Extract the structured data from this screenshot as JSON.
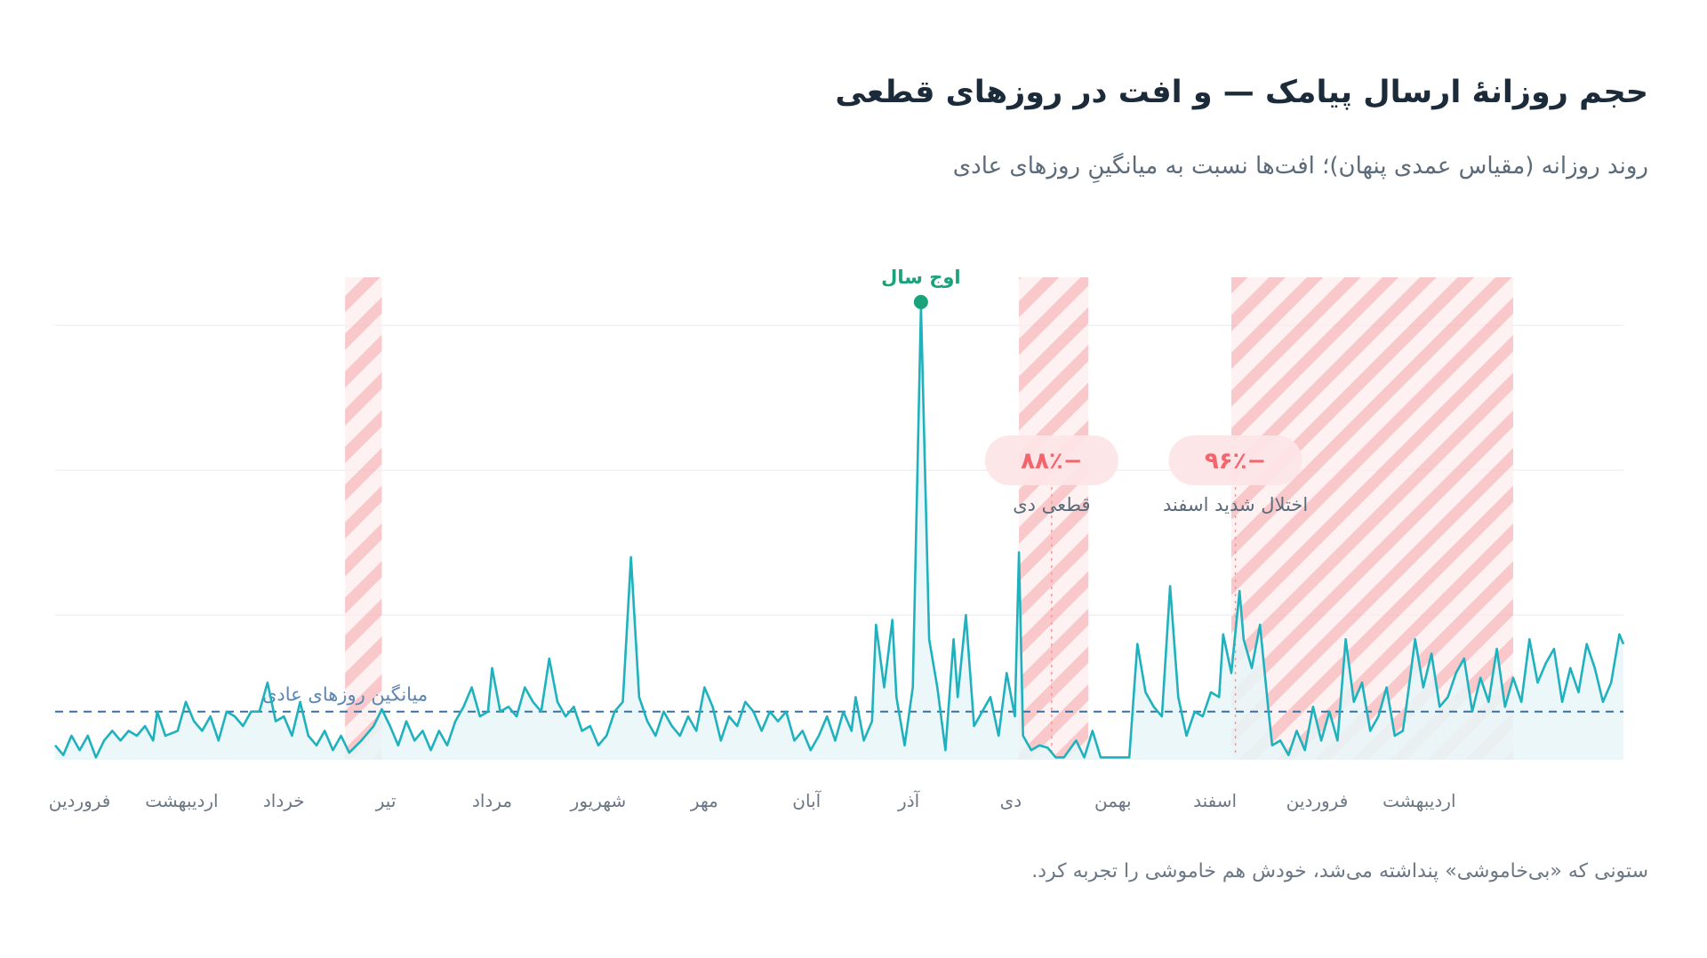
{
  "header": {
    "title": "حجم روزانهٔ ارسال پیامک — و افت در روزهای قطعی",
    "subtitle": "روند روزانه (مقیاس عمدی پنهان)؛ افت‌ها نسبت به میانگینِ روزهای عادی"
  },
  "footnote": "ستونی که «بی‌خاموشی» پنداشته می‌شد، خودش هم خاموشی را تجربه کرد.",
  "chart_data": {
    "type": "area",
    "x_unit": "day",
    "xlim": [
      0,
      384
    ],
    "ylim": [
      0,
      10
    ],
    "yaxis_hidden": true,
    "grid": true,
    "colors": {
      "line": "#1fb2be",
      "area": "#e7f6f8",
      "average": "#3f6f9f",
      "outage_band": "#f7b5b8",
      "badge": "#fde5e6",
      "badge_text": "#f4646c",
      "peak": "#1aa37a"
    },
    "months": [
      {
        "label": "فروردین",
        "day": 6
      },
      {
        "label": "اردیبهشت",
        "day": 31
      },
      {
        "label": "خرداد",
        "day": 56
      },
      {
        "label": "تیر",
        "day": 81
      },
      {
        "label": "مرداد",
        "day": 107
      },
      {
        "label": "شهریور",
        "day": 133
      },
      {
        "label": "مهر",
        "day": 159
      },
      {
        "label": "آبان",
        "day": 184
      },
      {
        "label": "آذر",
        "day": 209
      },
      {
        "label": "دی",
        "day": 234
      },
      {
        "label": "بهمن",
        "day": 259
      },
      {
        "label": "اسفند",
        "day": 284
      },
      {
        "label": "فروردین",
        "day": 309
      },
      {
        "label": "اردیبهشت",
        "day": 334
      }
    ],
    "average": {
      "value": 1.0,
      "label": "میانگین روزهای عادی"
    },
    "outages": [
      {
        "start": 71,
        "end": 80
      },
      {
        "start": 236,
        "end": 253
      },
      {
        "start": 288,
        "end": 357
      }
    ],
    "annotations": [
      {
        "day": 244,
        "badge": "−۸۸٪",
        "label": "قطعی دی"
      },
      {
        "day": 289,
        "badge": "−۹۶٪",
        "label": "اختلال شدید اسفند"
      }
    ],
    "peak": {
      "day": 212,
      "value": 9.45,
      "label": "اوج سال"
    },
    "keypoints": [
      [
        0,
        0.3
      ],
      [
        2,
        0.1
      ],
      [
        4,
        0.5
      ],
      [
        6,
        0.2
      ],
      [
        8,
        0.5
      ],
      [
        10,
        0.05
      ],
      [
        12,
        0.4
      ],
      [
        14,
        0.6
      ],
      [
        16,
        0.4
      ],
      [
        18,
        0.6
      ],
      [
        20,
        0.5
      ],
      [
        22,
        0.7
      ],
      [
        24,
        0.4
      ],
      [
        25,
        1.0
      ],
      [
        27,
        0.5
      ],
      [
        30,
        0.6
      ],
      [
        32,
        1.2
      ],
      [
        34,
        0.8
      ],
      [
        36,
        0.6
      ],
      [
        38,
        0.9
      ],
      [
        40,
        0.4
      ],
      [
        42,
        1.0
      ],
      [
        44,
        0.9
      ],
      [
        46,
        0.7
      ],
      [
        48,
        1.0
      ],
      [
        50,
        1.0
      ],
      [
        52,
        1.6
      ],
      [
        54,
        0.8
      ],
      [
        56,
        0.9
      ],
      [
        58,
        0.5
      ],
      [
        60,
        1.2
      ],
      [
        62,
        0.5
      ],
      [
        64,
        0.3
      ],
      [
        66,
        0.6
      ],
      [
        68,
        0.2
      ],
      [
        70,
        0.5
      ],
      [
        72,
        0.15
      ],
      [
        75,
        0.4
      ],
      [
        78,
        0.7
      ],
      [
        80,
        1.05
      ],
      [
        82,
        0.7
      ],
      [
        84,
        0.3
      ],
      [
        86,
        0.8
      ],
      [
        88,
        0.4
      ],
      [
        90,
        0.6
      ],
      [
        92,
        0.2
      ],
      [
        94,
        0.6
      ],
      [
        96,
        0.3
      ],
      [
        98,
        0.8
      ],
      [
        100,
        1.1
      ],
      [
        102,
        1.5
      ],
      [
        104,
        0.9
      ],
      [
        106,
        1.0
      ],
      [
        107,
        1.9
      ],
      [
        109,
        1.0
      ],
      [
        111,
        1.1
      ],
      [
        113,
        0.9
      ],
      [
        115,
        1.5
      ],
      [
        117,
        1.2
      ],
      [
        119,
        1.0
      ],
      [
        121,
        2.1
      ],
      [
        123,
        1.2
      ],
      [
        125,
        0.9
      ],
      [
        127,
        1.1
      ],
      [
        129,
        0.6
      ],
      [
        131,
        0.7
      ],
      [
        133,
        0.3
      ],
      [
        135,
        0.5
      ],
      [
        137,
        1.0
      ],
      [
        139,
        1.2
      ],
      [
        141,
        4.2
      ],
      [
        143,
        1.3
      ],
      [
        145,
        0.8
      ],
      [
        147,
        0.5
      ],
      [
        149,
        1.0
      ],
      [
        151,
        0.7
      ],
      [
        153,
        0.5
      ],
      [
        155,
        0.9
      ],
      [
        157,
        0.6
      ],
      [
        159,
        1.5
      ],
      [
        161,
        1.1
      ],
      [
        163,
        0.4
      ],
      [
        165,
        0.9
      ],
      [
        167,
        0.7
      ],
      [
        169,
        1.2
      ],
      [
        171,
        1.0
      ],
      [
        173,
        0.6
      ],
      [
        175,
        1.0
      ],
      [
        177,
        0.8
      ],
      [
        179,
        1.0
      ],
      [
        181,
        0.4
      ],
      [
        183,
        0.6
      ],
      [
        185,
        0.2
      ],
      [
        187,
        0.5
      ],
      [
        189,
        0.9
      ],
      [
        191,
        0.4
      ],
      [
        193,
        1.0
      ],
      [
        195,
        0.6
      ],
      [
        196,
        1.3
      ],
      [
        198,
        0.4
      ],
      [
        200,
        0.8
      ],
      [
        201,
        2.8
      ],
      [
        203,
        1.5
      ],
      [
        205,
        2.9
      ],
      [
        206,
        1.3
      ],
      [
        208,
        0.3
      ],
      [
        210,
        1.5
      ],
      [
        212,
        9.4
      ],
      [
        214,
        2.5
      ],
      [
        216,
        1.5
      ],
      [
        218,
        0.2
      ],
      [
        220,
        2.5
      ],
      [
        221,
        1.3
      ],
      [
        223,
        3.0
      ],
      [
        225,
        0.7
      ],
      [
        227,
        1.0
      ],
      [
        229,
        1.3
      ],
      [
        231,
        0.5
      ],
      [
        233,
        1.8
      ],
      [
        235,
        0.9
      ],
      [
        236,
        4.3
      ],
      [
        237,
        0.5
      ],
      [
        239,
        0.2
      ],
      [
        241,
        0.3
      ],
      [
        243,
        0.25
      ],
      [
        245,
        0.05
      ],
      [
        247,
        0.05
      ],
      [
        250,
        0.4
      ],
      [
        252,
        0.05
      ],
      [
        254,
        0.6
      ],
      [
        256,
        0.05
      ],
      [
        259,
        0.05
      ],
      [
        263,
        0.05
      ],
      [
        265,
        2.4
      ],
      [
        267,
        1.4
      ],
      [
        269,
        1.1
      ],
      [
        271,
        0.9
      ],
      [
        273,
        3.6
      ],
      [
        275,
        1.3
      ],
      [
        277,
        0.5
      ],
      [
        279,
        1.0
      ],
      [
        281,
        0.9
      ],
      [
        283,
        1.4
      ],
      [
        285,
        1.3
      ],
      [
        286,
        2.6
      ],
      [
        288,
        1.8
      ],
      [
        290,
        3.5
      ],
      [
        291,
        2.5
      ],
      [
        293,
        1.9
      ],
      [
        295,
        2.8
      ],
      [
        297,
        1.1
      ],
      [
        298,
        0.3
      ],
      [
        300,
        0.4
      ],
      [
        302,
        0.1
      ],
      [
        304,
        0.6
      ],
      [
        306,
        0.2
      ],
      [
        308,
        1.1
      ],
      [
        310,
        0.4
      ],
      [
        312,
        1.0
      ],
      [
        314,
        0.4
      ],
      [
        316,
        2.5
      ],
      [
        318,
        1.2
      ],
      [
        320,
        1.6
      ],
      [
        322,
        0.6
      ],
      [
        324,
        0.9
      ],
      [
        326,
        1.5
      ],
      [
        328,
        0.5
      ],
      [
        330,
        0.6
      ],
      [
        331,
        1.2
      ],
      [
        333,
        2.5
      ],
      [
        335,
        1.5
      ],
      [
        337,
        2.2
      ],
      [
        339,
        1.1
      ],
      [
        341,
        1.3
      ],
      [
        343,
        1.8
      ],
      [
        345,
        2.1
      ],
      [
        347,
        1.0
      ],
      [
        349,
        1.7
      ],
      [
        351,
        1.2
      ],
      [
        353,
        2.3
      ],
      [
        355,
        1.1
      ],
      [
        357,
        1.7
      ],
      [
        359,
        1.2
      ],
      [
        361,
        2.5
      ],
      [
        363,
        1.6
      ],
      [
        365,
        2.0
      ],
      [
        367,
        2.3
      ],
      [
        369,
        1.2
      ],
      [
        371,
        1.9
      ],
      [
        373,
        1.4
      ],
      [
        375,
        2.4
      ],
      [
        377,
        1.9
      ],
      [
        379,
        1.2
      ],
      [
        381,
        1.6
      ],
      [
        383,
        2.6
      ],
      [
        384,
        2.4
      ]
    ]
  }
}
